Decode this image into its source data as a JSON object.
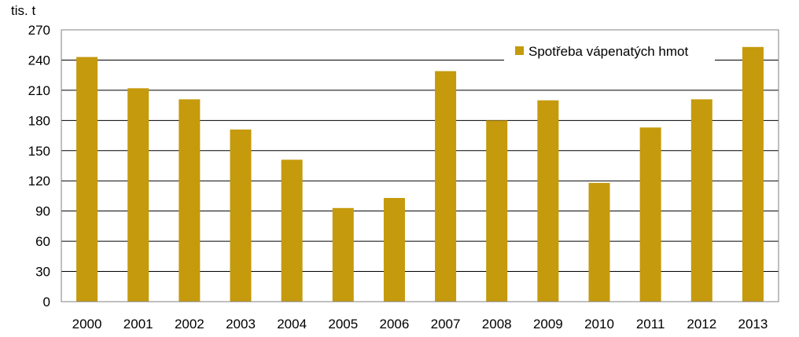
{
  "chart_data": {
    "type": "bar",
    "title": "",
    "xlabel": "",
    "ylabel": "",
    "unit_label": "tis. t",
    "categories": [
      "2000",
      "2001",
      "2002",
      "2003",
      "2004",
      "2005",
      "2006",
      "2007",
      "2008",
      "2009",
      "2010",
      "2011",
      "2012",
      "2013"
    ],
    "series": [
      {
        "name": "Spotřeba vápenatých hmot",
        "color": "#c59a0c",
        "values": [
          243,
          212,
          201,
          171,
          141,
          93,
          103,
          229,
          180,
          200,
          118,
          173,
          201,
          253
        ]
      }
    ],
    "ylim": [
      0,
      270
    ],
    "yticks": [
      0,
      30,
      60,
      90,
      120,
      150,
      180,
      210,
      240,
      270
    ],
    "grid": true,
    "legend_position": "top-right"
  }
}
